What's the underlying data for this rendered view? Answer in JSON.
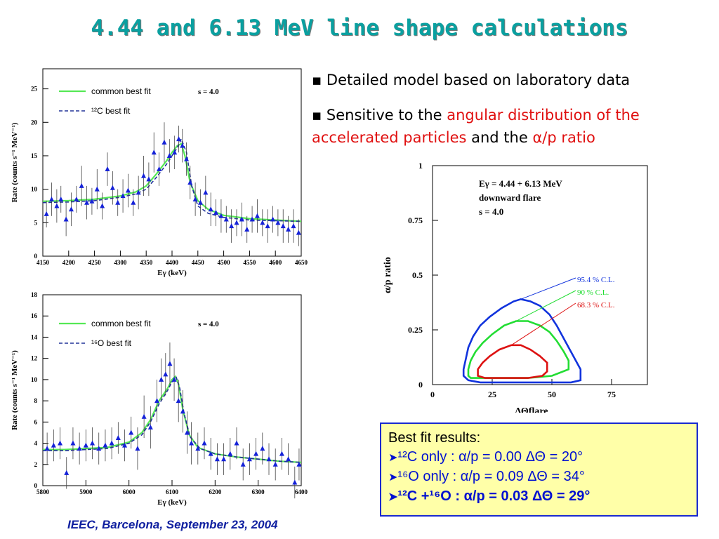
{
  "title": "4.44 and 6.13 MeV line shape calculations",
  "bullets": [
    {
      "pre": "Detailed model based on laboratory data",
      "red1": "",
      "mid": "",
      "red2": "",
      "end": ""
    },
    {
      "pre": "Sensitive to the ",
      "red1": "angular distribution of the accelerated particles",
      "mid": " and the ",
      "red2": "α/p ratio",
      "end": ""
    }
  ],
  "footer": "IEEC, Barcelona, September 23, 2004",
  "results": {
    "heading": "Best fit results:",
    "rows": [
      {
        "label": "¹²C only :",
        "value": "α/p = 0.00  ΔΘ = 20°"
      },
      {
        "label": "¹⁶O only :",
        "value": "α/p = 0.09  ΔΘ = 34°"
      },
      {
        "label": "¹²C +¹⁶O :",
        "value": "α/p = 0.03  ΔΘ = 29°"
      }
    ]
  },
  "chart_data": [
    {
      "type": "scatter",
      "xlabel": "Eγ (keV)",
      "ylabel": "Rate (counts s⁻¹ MeV⁻¹)",
      "xlim": [
        4150,
        4650
      ],
      "ylim": [
        0,
        28
      ],
      "x_ticks": [
        4150,
        4200,
        4250,
        4300,
        4350,
        4400,
        4450,
        4500,
        4550,
        4600,
        4650
      ],
      "y_ticks": [
        0,
        5,
        10,
        15,
        20,
        25
      ],
      "legend": [
        "common best fit",
        "¹²C best fit"
      ],
      "annotation": "s = 4.0",
      "points": [
        [
          4157,
          6.3,
          2.0
        ],
        [
          4167,
          8.5,
          2.5
        ],
        [
          4177,
          7.5,
          2.5
        ],
        [
          4185,
          8.5,
          2.0
        ],
        [
          4195,
          5.5,
          2.5
        ],
        [
          4205,
          7.0,
          2.5
        ],
        [
          4215,
          8.5,
          2.0
        ],
        [
          4225,
          10.5,
          3.0
        ],
        [
          4235,
          8.0,
          2.5
        ],
        [
          4245,
          8.2,
          2.0
        ],
        [
          4255,
          10.0,
          3.0
        ],
        [
          4265,
          7.5,
          2.0
        ],
        [
          4275,
          13.0,
          2.5
        ],
        [
          4285,
          10.2,
          2.5
        ],
        [
          4295,
          8.0,
          2.0
        ],
        [
          4305,
          9.0,
          2.5
        ],
        [
          4315,
          9.8,
          2.5
        ],
        [
          4325,
          8.0,
          2.0
        ],
        [
          4335,
          9.5,
          2.5
        ],
        [
          4345,
          12.0,
          3.0
        ],
        [
          4355,
          11.5,
          2.5
        ],
        [
          4365,
          15.5,
          3.0
        ],
        [
          4375,
          13.0,
          2.5
        ],
        [
          4385,
          17.0,
          3.0
        ],
        [
          4395,
          15.0,
          2.5
        ],
        [
          4405,
          15.5,
          2.5
        ],
        [
          4413,
          17.5,
          2.0
        ],
        [
          4420,
          16.5,
          2.5
        ],
        [
          4428,
          14.5,
          2.5
        ],
        [
          4435,
          11.0,
          2.5
        ],
        [
          4445,
          8.5,
          2.5
        ],
        [
          4455,
          8.0,
          2.0
        ],
        [
          4465,
          9.5,
          2.5
        ],
        [
          4475,
          7.0,
          2.5
        ],
        [
          4485,
          6.5,
          2.0
        ],
        [
          4495,
          6.0,
          2.5
        ],
        [
          4505,
          5.5,
          2.0
        ],
        [
          4515,
          4.5,
          2.5
        ],
        [
          4525,
          5.0,
          2.0
        ],
        [
          4535,
          5.5,
          2.5
        ],
        [
          4545,
          4.0,
          2.0
        ],
        [
          4555,
          5.5,
          2.0
        ],
        [
          4565,
          6.0,
          2.5
        ],
        [
          4575,
          5.0,
          2.0
        ],
        [
          4585,
          4.5,
          2.5
        ],
        [
          4595,
          5.5,
          2.0
        ],
        [
          4605,
          5.0,
          2.0
        ],
        [
          4615,
          4.5,
          2.5
        ],
        [
          4625,
          4.0,
          2.0
        ],
        [
          4635,
          4.5,
          2.5
        ],
        [
          4645,
          3.5,
          2.0
        ]
      ],
      "series": [
        {
          "name": "common best fit",
          "x": [
            4150,
            4200,
            4250,
            4300,
            4330,
            4350,
            4370,
            4390,
            4400,
            4410,
            4418,
            4425,
            4435,
            4450,
            4470,
            4500,
            4550,
            4600,
            4650
          ],
          "y": [
            8.2,
            8.3,
            8.5,
            9.0,
            9.6,
            10.5,
            12.3,
            14.3,
            15.5,
            16.5,
            16.8,
            15.0,
            11.0,
            8.3,
            7.0,
            6.1,
            5.6,
            5.4,
            5.2
          ]
        },
        {
          "name": "¹²C best fit",
          "x": [
            4150,
            4200,
            4250,
            4300,
            4330,
            4350,
            4370,
            4390,
            4400,
            4410,
            4418,
            4428,
            4438,
            4450,
            4470,
            4500,
            4550,
            4600,
            4650
          ],
          "y": [
            8.0,
            8.1,
            8.3,
            8.8,
            9.3,
            10.0,
            11.8,
            13.8,
            15.0,
            16.2,
            17.5,
            15.5,
            10.5,
            7.5,
            6.4,
            5.8,
            5.4,
            5.3,
            5.2
          ]
        }
      ]
    },
    {
      "type": "scatter",
      "xlabel": "Eγ (keV)",
      "ylabel": "Rate (counts s⁻¹ MeV⁻¹)",
      "xlim": [
        5800,
        6400
      ],
      "ylim": [
        0,
        18
      ],
      "x_ticks": [
        5800,
        5900,
        6000,
        6100,
        6200,
        6300,
        6400
      ],
      "y_ticks": [
        0,
        2,
        4,
        6,
        8,
        10,
        12,
        14,
        16,
        18
      ],
      "legend": [
        "common best fit",
        "¹⁶O best fit"
      ],
      "annotation": "s = 4.0",
      "points": [
        [
          5810,
          3.5,
          1.5
        ],
        [
          5825,
          3.8,
          1.5
        ],
        [
          5840,
          4.0,
          1.5
        ],
        [
          5855,
          1.2,
          1.5
        ],
        [
          5870,
          4.0,
          1.5
        ],
        [
          5885,
          3.5,
          1.5
        ],
        [
          5900,
          3.8,
          1.5
        ],
        [
          5915,
          4.0,
          1.5
        ],
        [
          5930,
          3.5,
          1.5
        ],
        [
          5945,
          3.8,
          1.5
        ],
        [
          5960,
          4.0,
          1.5
        ],
        [
          5975,
          4.5,
          1.5
        ],
        [
          5990,
          3.8,
          1.5
        ],
        [
          6005,
          5.0,
          1.5
        ],
        [
          6020,
          3.5,
          2.0
        ],
        [
          6035,
          6.5,
          2.0
        ],
        [
          6050,
          5.5,
          2.0
        ],
        [
          6065,
          8.0,
          2.0
        ],
        [
          6075,
          10.0,
          2.0
        ],
        [
          6085,
          10.5,
          2.0
        ],
        [
          6095,
          11.5,
          2.0
        ],
        [
          6105,
          10.0,
          2.0
        ],
        [
          6115,
          8.0,
          2.0
        ],
        [
          6125,
          7.0,
          2.0
        ],
        [
          6135,
          5.0,
          2.0
        ],
        [
          6145,
          4.0,
          2.0
        ],
        [
          6160,
          3.5,
          1.5
        ],
        [
          6175,
          4.0,
          1.5
        ],
        [
          6190,
          3.0,
          1.5
        ],
        [
          6205,
          2.5,
          1.5
        ],
        [
          6220,
          2.5,
          1.5
        ],
        [
          6235,
          3.0,
          1.5
        ],
        [
          6250,
          4.0,
          1.5
        ],
        [
          6265,
          2.0,
          1.5
        ],
        [
          6280,
          2.5,
          1.5
        ],
        [
          6295,
          3.0,
          1.5
        ],
        [
          6310,
          3.5,
          1.5
        ],
        [
          6325,
          2.5,
          1.5
        ],
        [
          6340,
          2.0,
          1.5
        ],
        [
          6355,
          3.0,
          1.5
        ],
        [
          6370,
          2.5,
          1.5
        ],
        [
          6385,
          0.3,
          1.5
        ],
        [
          6395,
          2.0,
          1.5
        ]
      ],
      "series": [
        {
          "name": "common best fit",
          "x": [
            5800,
            5850,
            5900,
            5950,
            6000,
            6030,
            6050,
            6070,
            6090,
            6100,
            6108,
            6115,
            6125,
            6140,
            6160,
            6200,
            6250,
            6300,
            6350,
            6400
          ],
          "y": [
            3.4,
            3.4,
            3.5,
            3.6,
            4.1,
            5.0,
            6.2,
            8.0,
            9.2,
            10.0,
            10.3,
            9.6,
            7.2,
            4.8,
            3.6,
            3.0,
            2.7,
            2.5,
            2.3,
            2.2
          ]
        },
        {
          "name": "¹⁶O best fit",
          "x": [
            5800,
            5850,
            5900,
            5950,
            6000,
            6030,
            6050,
            6070,
            6090,
            6100,
            6110,
            6118,
            6128,
            6142,
            6165,
            6200,
            6250,
            6300,
            6350,
            6400
          ],
          "y": [
            3.3,
            3.3,
            3.4,
            3.5,
            4.0,
            4.8,
            6.0,
            7.7,
            9.0,
            9.8,
            10.2,
            9.2,
            6.8,
            4.6,
            3.5,
            3.0,
            2.7,
            2.5,
            2.3,
            2.2
          ]
        }
      ]
    },
    {
      "type": "line",
      "xlabel": "ΔΘflare",
      "ylabel": "α/p ratio",
      "xlim": [
        0,
        90
      ],
      "ylim": [
        0,
        1
      ],
      "x_ticks": [
        0,
        25,
        50,
        75
      ],
      "y_ticks": [
        "0",
        "0.25",
        "0.5",
        "0.75",
        "1"
      ],
      "annotations": [
        "Eγ = 4.44 + 6.13 MeV",
        "downward flare",
        "s = 4.0"
      ],
      "series": [
        {
          "name": "95.4 % C.L.",
          "color": "#1133dd",
          "x": [
            13,
            13,
            14,
            15,
            17,
            20,
            24,
            29,
            34,
            37,
            41,
            45,
            49,
            52,
            55,
            58,
            60,
            62,
            62,
            58,
            50,
            40,
            30,
            20,
            15,
            13
          ],
          "y": [
            0.04,
            0.07,
            0.12,
            0.17,
            0.22,
            0.27,
            0.31,
            0.35,
            0.38,
            0.39,
            0.38,
            0.36,
            0.32,
            0.27,
            0.21,
            0.15,
            0.11,
            0.07,
            0.02,
            0.01,
            0.01,
            0.01,
            0.01,
            0.01,
            0.02,
            0.04
          ]
        },
        {
          "name": "90 % C.L.",
          "color": "#22dd33",
          "x": [
            15,
            15,
            16,
            18,
            21,
            25,
            30,
            35,
            40,
            45,
            49,
            52,
            55,
            57,
            57,
            50,
            40,
            30,
            20,
            16,
            15
          ],
          "y": [
            0.04,
            0.07,
            0.11,
            0.15,
            0.19,
            0.23,
            0.27,
            0.29,
            0.29,
            0.27,
            0.24,
            0.2,
            0.15,
            0.11,
            0.07,
            0.04,
            0.03,
            0.03,
            0.03,
            0.03,
            0.04
          ]
        },
        {
          "name": "68.3 % C.L.",
          "color": "#dd1111",
          "x": [
            19,
            19,
            21,
            24,
            28,
            33,
            37,
            41,
            45,
            48,
            48,
            46,
            40,
            30,
            22,
            19
          ],
          "y": [
            0.04,
            0.07,
            0.1,
            0.13,
            0.16,
            0.18,
            0.18,
            0.16,
            0.13,
            0.1,
            0.06,
            0.04,
            0.03,
            0.03,
            0.03,
            0.04
          ]
        }
      ]
    }
  ]
}
